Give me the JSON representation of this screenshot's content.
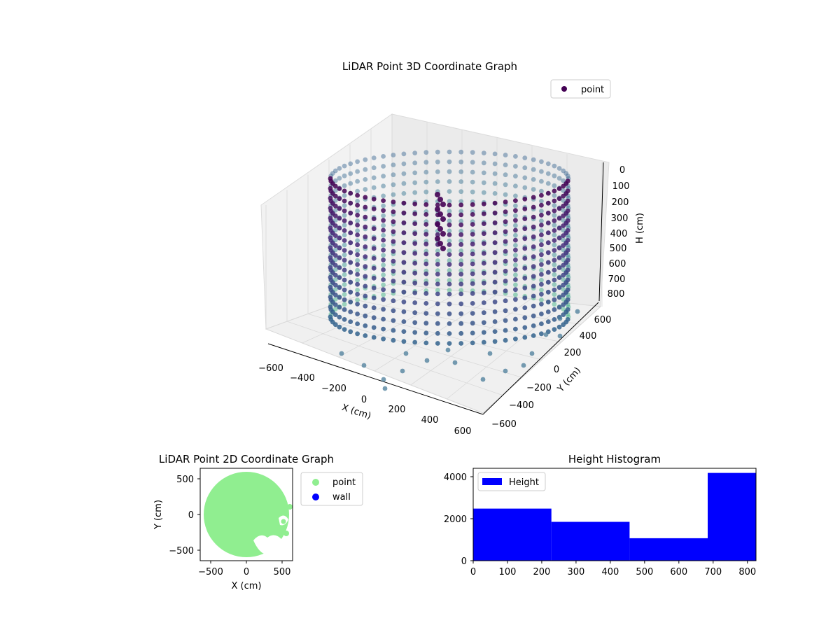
{
  "chart_data": [
    {
      "type": "scatter",
      "projection": "3d",
      "title": "LiDAR Point 3D Coordinate Graph",
      "xlabel": "X (cm)",
      "ylabel": "Y (cm)",
      "zlabel": "H (cm)",
      "xlim": [
        -650,
        650
      ],
      "ylim": [
        -650,
        650
      ],
      "zlim": [
        0,
        850
      ],
      "z_inverted": true,
      "x_ticks": [
        "−600",
        "−400",
        "−200",
        "0",
        "200",
        "400",
        "600"
      ],
      "y_ticks": [
        "−600",
        "−400",
        "−200",
        "0",
        "200",
        "400",
        "600"
      ],
      "z_ticks": [
        "0",
        "100",
        "200",
        "300",
        "400",
        "500",
        "600",
        "700",
        "800"
      ],
      "colormap": "viridis (by height)",
      "legend": {
        "entries": [
          "point"
        ],
        "placement": "upper-right",
        "color": "#440154"
      },
      "shape": {
        "kind": "cylindrical wall",
        "center": [
          0,
          0
        ],
        "radius": 600,
        "height_range": [
          0,
          800
        ]
      }
    },
    {
      "type": "scatter",
      "title": "LiDAR Point 2D Coordinate Graph",
      "xlabel": "X (cm)",
      "ylabel": "Y (cm)",
      "xlim": [
        -650,
        650
      ],
      "ylim": [
        -650,
        650
      ],
      "x_ticks": [
        "−500",
        "0",
        "500"
      ],
      "y_ticks": [
        "500",
        "0",
        "−500"
      ],
      "series": [
        {
          "name": "point",
          "color": "#90ee90"
        },
        {
          "name": "wall",
          "color": "#0000ff"
        }
      ],
      "legend": {
        "placement": "outside-right"
      },
      "region": {
        "kind": "filled disc",
        "center": [
          0,
          0
        ],
        "radius": 600
      }
    },
    {
      "type": "bar",
      "subtype": "histogram",
      "title": "Height Histogram",
      "xlim": [
        0,
        825
      ],
      "ylim": [
        0,
        4400
      ],
      "x_ticks": [
        "0",
        "100",
        "200",
        "300",
        "400",
        "500",
        "600",
        "700",
        "800"
      ],
      "y_ticks": [
        "0",
        "2000",
        "4000"
      ],
      "bins": [
        {
          "start": 0,
          "end": 228,
          "count": 2480
        },
        {
          "start": 228,
          "end": 456,
          "count": 1850
        },
        {
          "start": 456,
          "end": 684,
          "count": 1070
        },
        {
          "start": 684,
          "end": 825,
          "count": 4180
        }
      ],
      "series": [
        {
          "name": "Height",
          "color": "#0000ff"
        }
      ],
      "legend": {
        "placement": "upper-left"
      }
    }
  ]
}
